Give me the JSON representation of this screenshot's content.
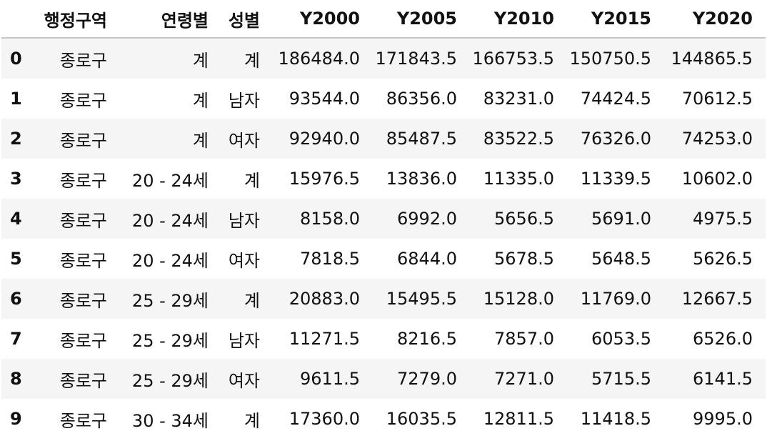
{
  "table": {
    "columns": [
      "행정구역",
      "연령별",
      "성별",
      "Y2000",
      "Y2005",
      "Y2010",
      "Y2015",
      "Y2020"
    ],
    "rows": [
      {
        "index": "0",
        "cells": [
          "종로구",
          "계",
          "계",
          "186484.0",
          "171843.5",
          "166753.5",
          "150750.5",
          "144865.5"
        ]
      },
      {
        "index": "1",
        "cells": [
          "종로구",
          "계",
          "남자",
          "93544.0",
          "86356.0",
          "83231.0",
          "74424.5",
          "70612.5"
        ]
      },
      {
        "index": "2",
        "cells": [
          "종로구",
          "계",
          "여자",
          "92940.0",
          "85487.5",
          "83522.5",
          "76326.0",
          "74253.0"
        ]
      },
      {
        "index": "3",
        "cells": [
          "종로구",
          "20 - 24세",
          "계",
          "15976.5",
          "13836.0",
          "11335.0",
          "11339.5",
          "10602.0"
        ]
      },
      {
        "index": "4",
        "cells": [
          "종로구",
          "20 - 24세",
          "남자",
          "8158.0",
          "6992.0",
          "5656.5",
          "5691.0",
          "4975.5"
        ]
      },
      {
        "index": "5",
        "cells": [
          "종로구",
          "20 - 24세",
          "여자",
          "7818.5",
          "6844.0",
          "5678.5",
          "5648.5",
          "5626.5"
        ]
      },
      {
        "index": "6",
        "cells": [
          "종로구",
          "25 - 29세",
          "계",
          "20883.0",
          "15495.5",
          "15128.0",
          "11769.0",
          "12667.5"
        ]
      },
      {
        "index": "7",
        "cells": [
          "종로구",
          "25 - 29세",
          "남자",
          "11271.5",
          "8216.5",
          "7857.0",
          "6053.5",
          "6526.0"
        ]
      },
      {
        "index": "8",
        "cells": [
          "종로구",
          "25 - 29세",
          "여자",
          "9611.5",
          "7279.0",
          "7271.0",
          "5715.5",
          "6141.5"
        ]
      },
      {
        "index": "9",
        "cells": [
          "종로구",
          "30 - 34세",
          "계",
          "17360.0",
          "16035.5",
          "12811.5",
          "11418.5",
          "9995.0"
        ]
      }
    ]
  }
}
